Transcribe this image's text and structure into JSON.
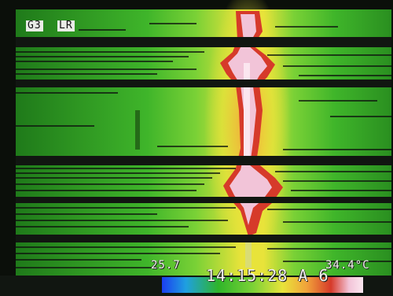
{
  "osd": {
    "mode": "G3",
    "range": "LR",
    "min_temp": "25.7",
    "timestamp": "14:15:28 A 6",
    "max_temp": "34.4°C"
  },
  "palette": {
    "cold": "#1b3ff0",
    "cool": "#1fa0e0",
    "green_dark": "#1f7a1a",
    "green": "#3fb52a",
    "green_light": "#7ad136",
    "yellow": "#e8e33a",
    "orange": "#f1a23a",
    "red": "#d63a2a",
    "hot": "#f2c4d8",
    "hottest": "#fbe6ef",
    "scan_dark": "#111611"
  }
}
